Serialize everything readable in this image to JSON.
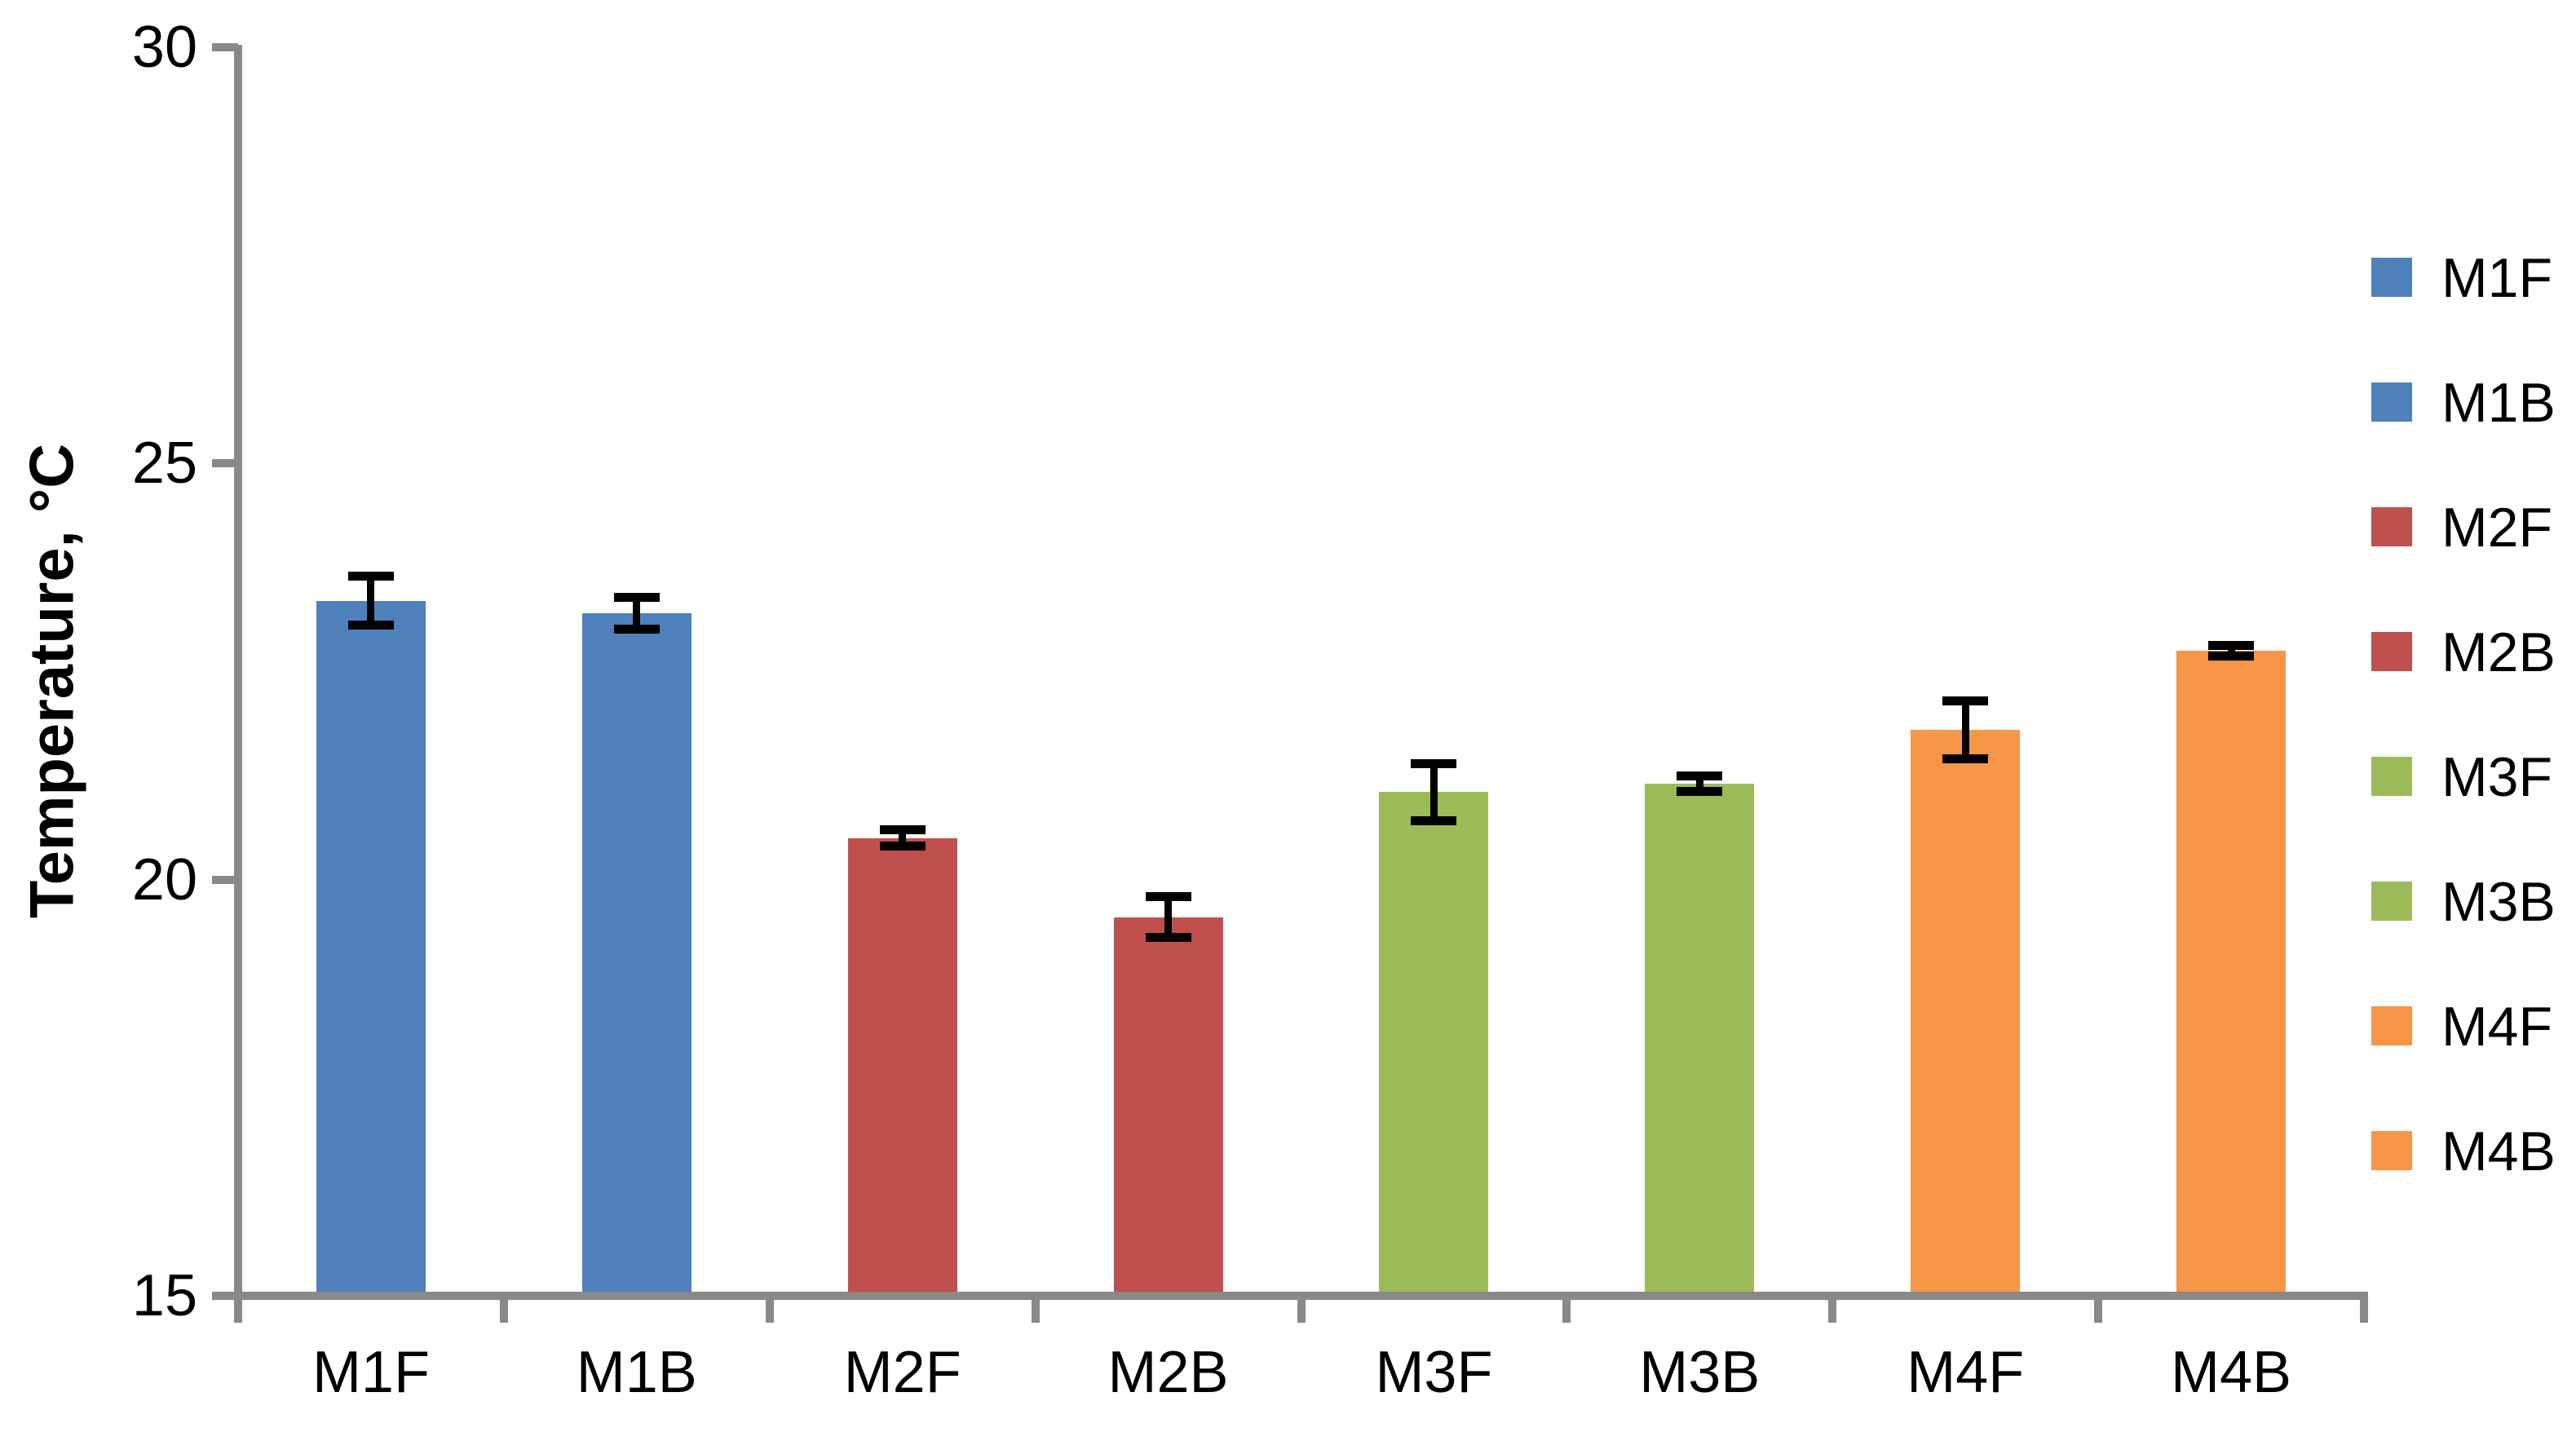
{
  "chart_data": {
    "type": "bar",
    "title": "",
    "xlabel": "",
    "ylabel": "Temperature, °C",
    "ylim": [
      15,
      30
    ],
    "yticks": [
      15,
      20,
      25,
      30
    ],
    "grid": false,
    "legend_position": "right",
    "categories": [
      "M1F",
      "M1B",
      "M2F",
      "M2B",
      "M3F",
      "M3B",
      "M4F",
      "M4B"
    ],
    "series": [
      {
        "name": "Temperature",
        "values": [
          23.35,
          23.2,
          20.5,
          19.55,
          21.05,
          21.15,
          21.8,
          22.75
        ],
        "errors": [
          0.3,
          0.2,
          0.1,
          0.25,
          0.35,
          0.1,
          0.35,
          0.07
        ]
      }
    ],
    "bar_colors": [
      "#4F81BD",
      "#4F81BD",
      "#C0504D",
      "#C0504D",
      "#9BBB59",
      "#9BBB59",
      "#F79646",
      "#F79646"
    ],
    "legend": [
      {
        "label": "M1F",
        "color": "#4F81BD"
      },
      {
        "label": "M1B",
        "color": "#4F81BD"
      },
      {
        "label": "M2F",
        "color": "#C0504D"
      },
      {
        "label": "M2B",
        "color": "#C0504D"
      },
      {
        "label": "M3F",
        "color": "#9BBB59"
      },
      {
        "label": "M3B",
        "color": "#9BBB59"
      },
      {
        "label": "M4F",
        "color": "#F79646"
      },
      {
        "label": "M4B",
        "color": "#F79646"
      }
    ],
    "axis_color": "#898989",
    "error_bar_color": "#000000"
  }
}
